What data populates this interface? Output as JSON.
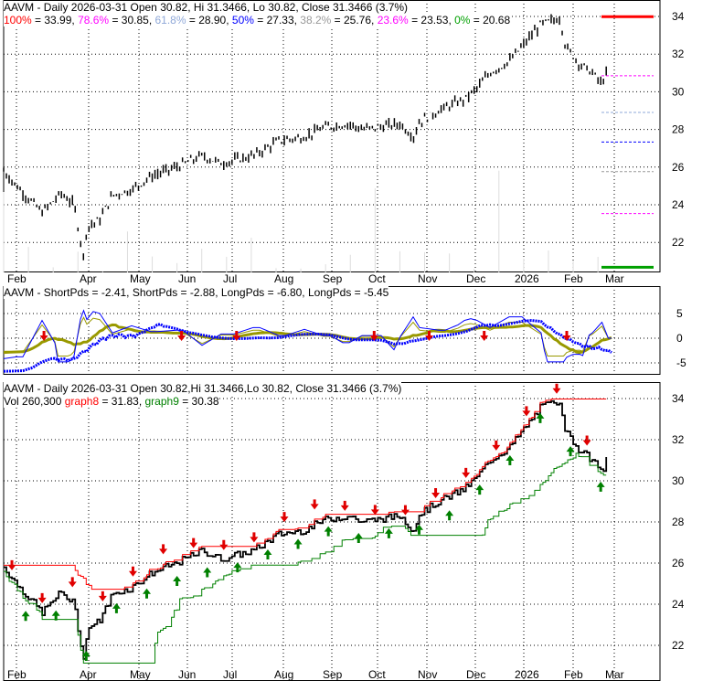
{
  "chart_data": [
    {
      "type": "candlestick",
      "title": "AAVM - Daily 2026-03-31 Open 30.82, Hi 31.3466, Lo 30.82, Close 31.3466 (3.7%)",
      "fib_levels": [
        {
          "label": "100%",
          "value": "33.99",
          "color": "#ff0000"
        },
        {
          "label": "78.6%",
          "value": "30.85",
          "color": "#ff00ff"
        },
        {
          "label": "61.8%",
          "value": "28.90",
          "color": "#8fa8d8"
        },
        {
          "label": "50%",
          "value": "27.33",
          "color": "#0000ff"
        },
        {
          "label": "38.2%",
          "value": "25.76",
          "color": "#999999"
        },
        {
          "label": "23.6%",
          "value": "23.53",
          "color": "#ff00ff"
        },
        {
          "label": "0%",
          "value": "20.68",
          "color": "#00a000"
        }
      ],
      "yticks": [
        "34",
        "32",
        "30",
        "28",
        "26",
        "24",
        "22"
      ],
      "ylim": [
        20.5,
        34.8
      ],
      "xticks": [
        "Feb",
        "Apr",
        "May",
        "Jun",
        "Jul",
        "Aug",
        "Sep",
        "Oct",
        "Nov",
        "Dec",
        "2026",
        "Feb",
        "Mar"
      ],
      "close_path": [
        [
          0,
          25.8
        ],
        [
          2,
          25
        ],
        [
          6,
          23.6
        ],
        [
          9,
          24.6
        ],
        [
          11,
          24
        ],
        [
          12.5,
          21.2
        ],
        [
          13,
          22.8
        ],
        [
          15,
          23.2
        ],
        [
          17,
          24.5
        ],
        [
          20,
          24.8
        ],
        [
          23,
          25.5
        ],
        [
          27,
          26
        ],
        [
          31,
          26.6
        ],
        [
          34,
          26.2
        ],
        [
          39,
          26.6
        ],
        [
          43,
          27.4
        ],
        [
          47,
          27.6
        ],
        [
          50,
          28.1
        ],
        [
          54,
          28.3
        ],
        [
          56,
          28
        ],
        [
          62,
          28.3
        ],
        [
          64,
          27.6
        ],
        [
          65,
          28.4
        ],
        [
          68,
          29
        ],
        [
          72,
          29.6
        ],
        [
          74,
          30.2
        ],
        [
          76,
          31
        ],
        [
          79,
          31.6
        ],
        [
          82,
          32.8
        ],
        [
          84,
          33.6
        ],
        [
          87,
          33.9
        ],
        [
          87.8,
          32.4
        ],
        [
          90,
          31.5
        ],
        [
          92,
          31
        ],
        [
          93.5,
          30.4
        ],
        [
          94.5,
          31.3
        ]
      ]
    },
    {
      "type": "line",
      "title": "AAVM - ShortPds = -2.41, ShortPds = -2.88, LongPds = -6.80, LongPds = -5.45",
      "legend": [
        {
          "name": "ShortPds",
          "value": "-2.41",
          "color": "#999900"
        },
        {
          "name": "ShortPds",
          "value": "-2.88",
          "color": "#999900"
        },
        {
          "name": "LongPds",
          "value": "-6.80",
          "color": "#0000ff"
        },
        {
          "name": "LongPds",
          "value": "-5.45",
          "color": "#0000ff"
        }
      ],
      "yticks": [
        "5",
        "0",
        "-5"
      ],
      "ylim": [
        -8,
        8
      ]
    },
    {
      "type": "line",
      "title": "AAVM - Daily 2026-03-31 Open 30.82,Hi 31.3466,Lo 30.82, Close 31.3466 (3.7%)",
      "vol": "Vol 260,300",
      "legend": [
        {
          "name": "graph8",
          "value": "31.83",
          "color": "#ff0000"
        },
        {
          "name": "graph9",
          "value": "30.38",
          "color": "#008000"
        }
      ],
      "yticks": [
        "34",
        "32",
        "30",
        "28",
        "26",
        "24",
        "22"
      ],
      "ylim": [
        21,
        34.8
      ]
    }
  ],
  "labels": {
    "sep": " = ",
    "comma": ", "
  }
}
